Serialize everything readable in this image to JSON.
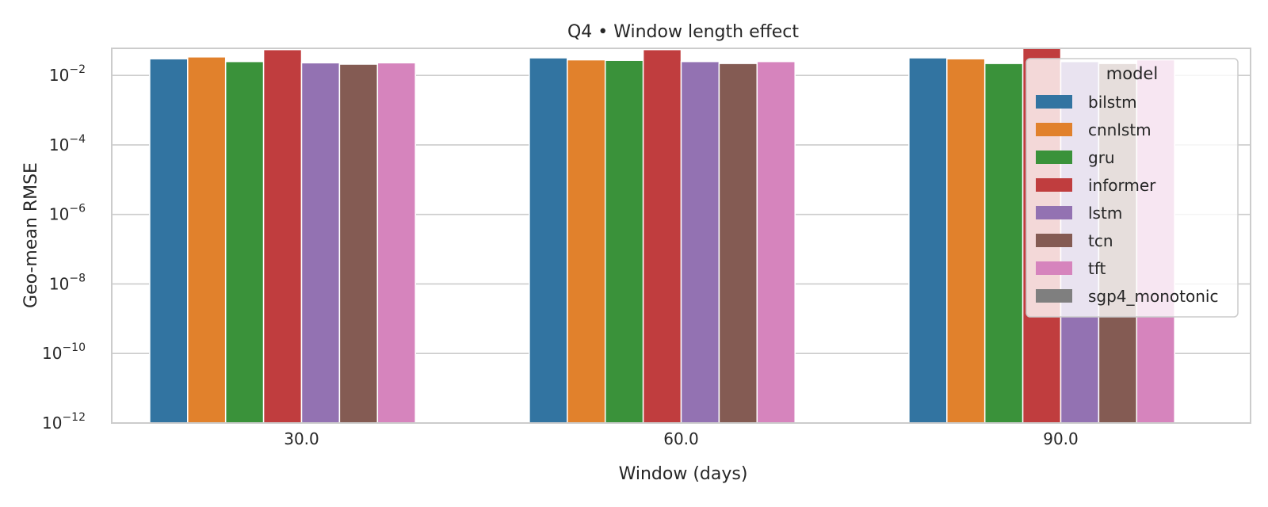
{
  "chart_data": {
    "type": "bar",
    "title": "Q4 • Window length effect",
    "xlabel": "Window (days)",
    "ylabel": "Geo-mean RMSE",
    "yscale": "log",
    "ylim": [
      1e-12,
      0.06
    ],
    "yticks": [
      {
        "base": "10",
        "exp": "−2",
        "value": 0.01
      },
      {
        "base": "10",
        "exp": "−4",
        "value": 0.0001
      },
      {
        "base": "10",
        "exp": "−6",
        "value": 1e-06
      },
      {
        "base": "10",
        "exp": "−8",
        "value": 1e-08
      },
      {
        "base": "10",
        "exp": "−10",
        "value": 1e-10
      },
      {
        "base": "10",
        "exp": "−12",
        "value": 1e-12
      }
    ],
    "categories": [
      "30.0",
      "60.0",
      "90.0"
    ],
    "grid": true,
    "legend": {
      "title": "model",
      "position": "top-right"
    },
    "series": [
      {
        "name": "bilstm",
        "color": "#3274a1",
        "values": [
          0.03,
          0.032,
          0.032
        ]
      },
      {
        "name": "cnnlstm",
        "color": "#e1812c",
        "values": [
          0.034,
          0.028,
          0.03
        ]
      },
      {
        "name": "gru",
        "color": "#3a923a",
        "values": [
          0.025,
          0.027,
          0.022
        ]
      },
      {
        "name": "informer",
        "color": "#c03d3e",
        "values": [
          0.055,
          0.055,
          0.06
        ]
      },
      {
        "name": "lstm",
        "color": "#9372b2",
        "values": [
          0.023,
          0.025,
          0.025
        ]
      },
      {
        "name": "tcn",
        "color": "#845b53",
        "values": [
          0.021,
          0.022,
          0.022
        ]
      },
      {
        "name": "tft",
        "color": "#d684bd",
        "values": [
          0.023,
          0.025,
          0.028
        ]
      },
      {
        "name": "sgp4_monotonic",
        "color": "#7f7f7f",
        "values": [
          null,
          null,
          null
        ]
      }
    ]
  }
}
